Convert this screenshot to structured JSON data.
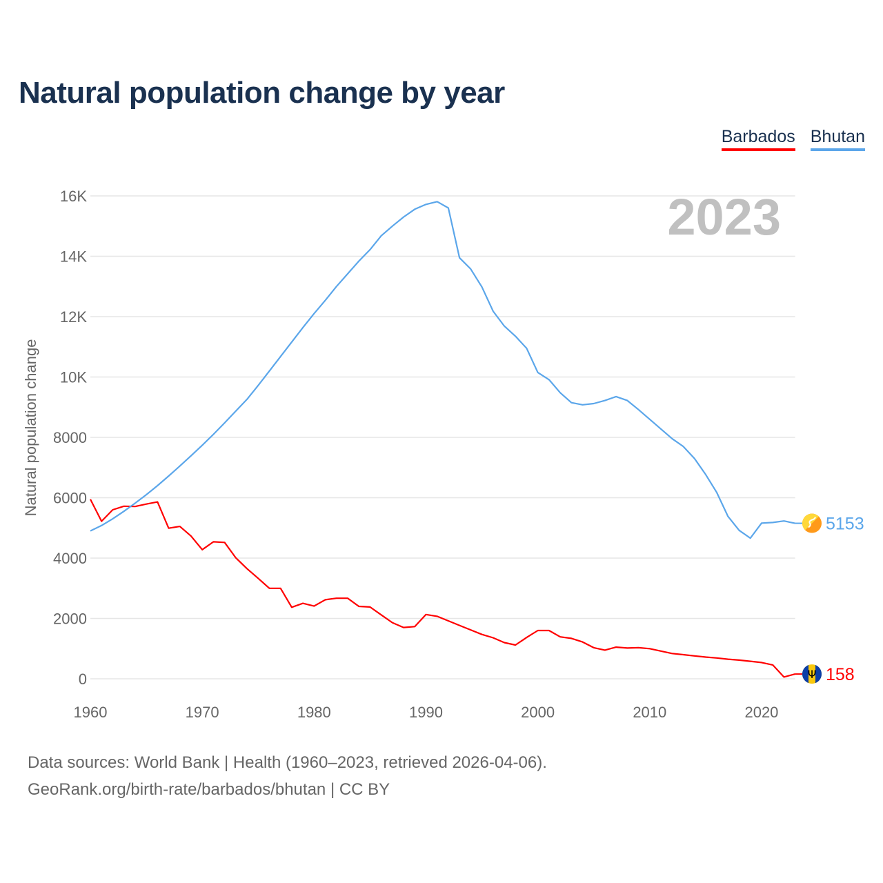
{
  "chart_data": {
    "type": "line",
    "title": "Natural population change by year",
    "ylabel": "Natural population change",
    "xlabel": "",
    "year_label": "2023",
    "xlim": [
      1960,
      2023
    ],
    "ylim": [
      0,
      16000
    ],
    "x_ticks": [
      1960,
      1970,
      1980,
      1990,
      2000,
      2010,
      2020
    ],
    "y_ticks": [
      0,
      2000,
      4000,
      6000,
      8000,
      10000,
      12000,
      14000,
      16000
    ],
    "y_tick_labels": [
      "0",
      "2000",
      "4000",
      "6000",
      "8000",
      "10K",
      "12K",
      "14K",
      "16K"
    ],
    "grid": true,
    "legend_position": "top-right",
    "x": [
      1960,
      1961,
      1962,
      1963,
      1964,
      1965,
      1966,
      1967,
      1968,
      1969,
      1970,
      1971,
      1972,
      1973,
      1974,
      1975,
      1976,
      1977,
      1978,
      1979,
      1980,
      1981,
      1982,
      1983,
      1984,
      1985,
      1986,
      1987,
      1988,
      1989,
      1990,
      1991,
      1992,
      1993,
      1994,
      1995,
      1996,
      1997,
      1998,
      1999,
      2000,
      2001,
      2002,
      2003,
      2004,
      2005,
      2006,
      2007,
      2008,
      2009,
      2010,
      2011,
      2012,
      2013,
      2014,
      2015,
      2016,
      2017,
      2018,
      2019,
      2020,
      2021,
      2022,
      2023
    ],
    "series": [
      {
        "name": "Barbados",
        "color": "#ff0000",
        "end_label": "158",
        "flag": "barbados-flag",
        "values": [
          5950,
          5220,
          5600,
          5720,
          5710,
          5790,
          5860,
          4990,
          5050,
          4730,
          4280,
          4540,
          4520,
          4010,
          3650,
          3330,
          3000,
          3000,
          2370,
          2500,
          2410,
          2620,
          2670,
          2670,
          2400,
          2380,
          2120,
          1860,
          1700,
          1730,
          2130,
          2070,
          1920,
          1770,
          1620,
          1470,
          1360,
          1200,
          1120,
          1370,
          1600,
          1600,
          1390,
          1340,
          1220,
          1030,
          950,
          1050,
          1020,
          1030,
          1000,
          920,
          840,
          800,
          760,
          720,
          690,
          650,
          620,
          580,
          540,
          460,
          60,
          158
        ]
      },
      {
        "name": "Bhutan",
        "color": "#5ba6ea",
        "end_label": "5153",
        "flag": "bhutan-flag",
        "values": [
          4900,
          5080,
          5300,
          5550,
          5820,
          6100,
          6400,
          6720,
          7050,
          7390,
          7740,
          8100,
          8480,
          8870,
          9260,
          9720,
          10200,
          10680,
          11160,
          11640,
          12100,
          12540,
          13000,
          13420,
          13840,
          14220,
          14680,
          15000,
          15300,
          15560,
          15720,
          15810,
          15600,
          13950,
          13580,
          12980,
          12180,
          11690,
          11350,
          10950,
          10150,
          9910,
          9480,
          9150,
          9080,
          9120,
          9220,
          9350,
          9220,
          8920,
          8600,
          8280,
          7960,
          7700,
          7300,
          6770,
          6170,
          5380,
          4920,
          4660,
          5160,
          5180,
          5230,
          5153
        ]
      }
    ]
  },
  "footer": {
    "line1": "Data sources: World Bank | Health (1960–2023, retrieved 2026-04-06).",
    "line2": "GeoRank.org/birth-rate/barbados/bhutan | CC BY"
  }
}
